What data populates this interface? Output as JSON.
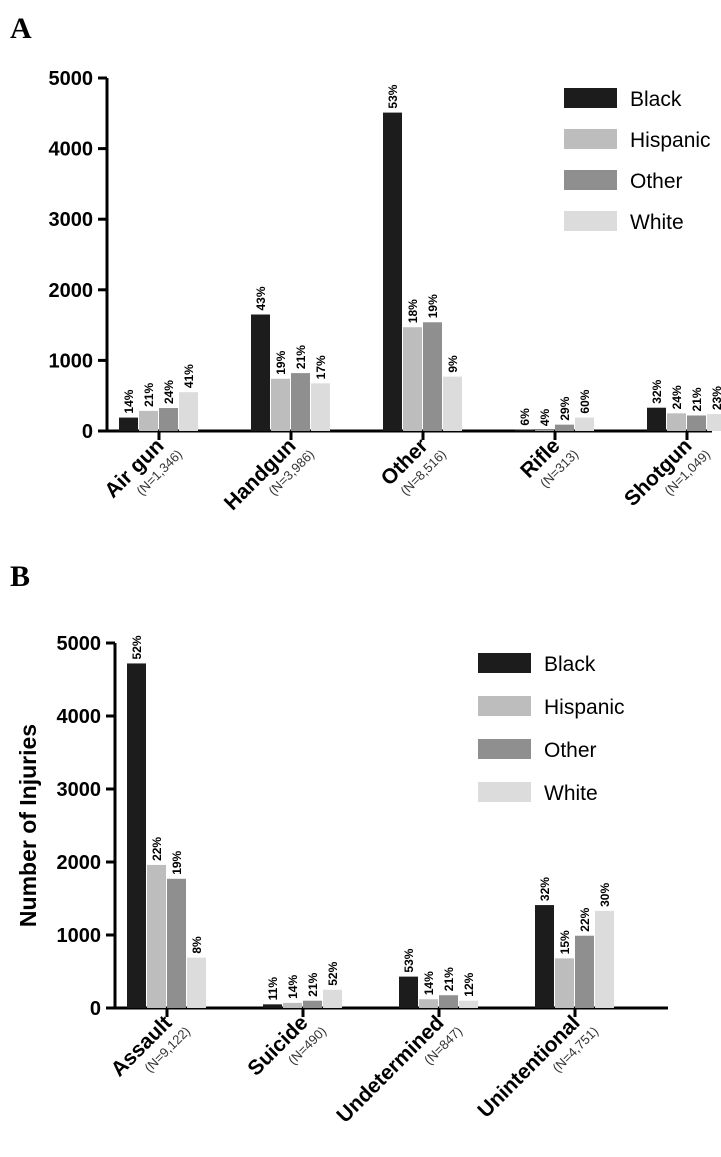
{
  "panel_labels": [
    "A",
    "B"
  ],
  "colors": {
    "Black": "#1c1c1c",
    "Hispanic": "#bdbdbd",
    "Other": "#8f8f8f",
    "White": "#dcdcdc"
  },
  "chart_data": [
    {
      "type": "bar",
      "panel": "A",
      "categories": [
        "Air gun",
        "Handgun",
        "Other",
        "Rifle",
        "Shotgun"
      ],
      "category_counts": [
        "(N=1,346)",
        "(N=3,986)",
        "(N=8,516)",
        "(N=313)",
        "(N=1,049)"
      ],
      "series": [
        {
          "name": "Black",
          "values": [
            190,
            1650,
            4510,
            20,
            330
          ],
          "labels": [
            "14%",
            "43%",
            "53%",
            "6%",
            "32%"
          ]
        },
        {
          "name": "Hispanic",
          "values": [
            285,
            740,
            1470,
            12,
            250
          ],
          "labels": [
            "21%",
            "19%",
            "18%",
            "4%",
            "24%"
          ]
        },
        {
          "name": "Other",
          "values": [
            325,
            820,
            1540,
            90,
            220
          ],
          "labels": [
            "24%",
            "21%",
            "19%",
            "29%",
            "21%"
          ]
        },
        {
          "name": "White",
          "values": [
            550,
            675,
            770,
            190,
            240
          ],
          "labels": [
            "41%",
            "17%",
            "9%",
            "60%",
            "23%"
          ]
        }
      ],
      "yticks": [
        "0",
        "1000",
        "2000",
        "3000",
        "4000",
        "5000"
      ],
      "ylim": [
        0,
        5000
      ],
      "xlabel": "",
      "ylabel": "",
      "legend": "top-right",
      "grid": false
    },
    {
      "type": "bar",
      "panel": "B",
      "categories": [
        "Assault",
        "Suicide",
        "Undetermined",
        "Unintentional"
      ],
      "category_counts": [
        "(N=9,122)",
        "(N=490)",
        "(N=847)",
        "(N=4,751)"
      ],
      "series": [
        {
          "name": "Black",
          "values": [
            4720,
            50,
            430,
            1410
          ],
          "labels": [
            "52%",
            "11%",
            "53%",
            "32%"
          ]
        },
        {
          "name": "Hispanic",
          "values": [
            1960,
            70,
            120,
            680
          ],
          "labels": [
            "22%",
            "14%",
            "14%",
            "15%"
          ]
        },
        {
          "name": "Other",
          "values": [
            1770,
            100,
            175,
            990
          ],
          "labels": [
            "19%",
            "21%",
            "21%",
            "22%"
          ]
        },
        {
          "name": "White",
          "values": [
            690,
            250,
            100,
            1330
          ],
          "labels": [
            "8%",
            "52%",
            "12%",
            "30%"
          ]
        }
      ],
      "yticks": [
        "0",
        "1000",
        "2000",
        "3000",
        "4000",
        "5000"
      ],
      "ylim": [
        0,
        5000
      ],
      "xlabel": "",
      "ylabel": "Number of Injuries",
      "legend": "top-right",
      "grid": false
    }
  ]
}
